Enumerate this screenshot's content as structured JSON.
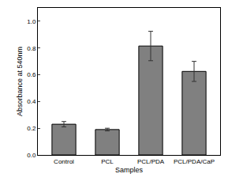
{
  "chart_data": {
    "type": "bar",
    "x_label": "Samples",
    "y_label": "Absorbance at 540nm",
    "categories": [
      "Control",
      "PCL",
      "PCL/PDA",
      "PCL/PDA/CaP"
    ],
    "values": [
      0.23,
      0.19,
      0.815,
      0.625
    ],
    "errors": [
      0.02,
      0.01,
      0.11,
      0.075
    ],
    "color": "#808080",
    "ylim": [
      0,
      1.1
    ],
    "yticks": [
      {
        "value": 0,
        "label": "0.0"
      },
      0.2,
      0.4,
      0.6,
      0.8,
      {
        "value": 1,
        "label": "1.0"
      }
    ],
    "grid": false
  }
}
